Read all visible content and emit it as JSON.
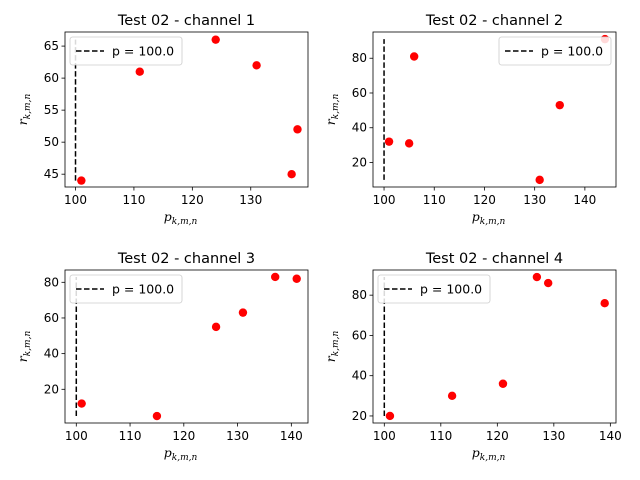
{
  "figure": {
    "background": "#ffffff",
    "marker_color": "#ff0000",
    "line_color": "#000000"
  },
  "chart_data": [
    {
      "type": "scatter",
      "title": "Test 02 - channel 1",
      "xlabel": "p",
      "xlabel_sub": "k,m,n",
      "ylabel": "r",
      "ylabel_sub": "k,m,n",
      "xlim": [
        98.2,
        139.8
      ],
      "ylim": [
        43.0,
        67.2
      ],
      "xticks": [
        100,
        110,
        120,
        130
      ],
      "yticks": [
        45,
        50,
        55,
        60,
        65
      ],
      "legend": {
        "label": "p = 100.0",
        "placement": "upper-left"
      },
      "vline": {
        "x": 100,
        "y": [
          44,
          66
        ],
        "style": "dashed"
      },
      "points": {
        "x": [
          101,
          111,
          124,
          131,
          137,
          138
        ],
        "y": [
          44,
          61,
          66,
          62,
          45,
          52
        ]
      }
    },
    {
      "type": "scatter",
      "title": "Test 02 - channel 2",
      "xlabel": "p",
      "xlabel_sub": "k,m,n",
      "ylabel": "r",
      "ylabel_sub": "k,m,n",
      "xlim": [
        97.8,
        146.2
      ],
      "ylim": [
        5.9,
        95.1
      ],
      "xticks": [
        100,
        110,
        120,
        130,
        140
      ],
      "yticks": [
        20,
        40,
        60,
        80
      ],
      "legend": {
        "label": "p = 100.0",
        "placement": "upper-right"
      },
      "vline": {
        "x": 100,
        "y": [
          10,
          91
        ],
        "style": "dashed"
      },
      "points": {
        "x": [
          101,
          105,
          106,
          131,
          135,
          144
        ],
        "y": [
          32,
          31,
          81,
          10,
          53,
          91
        ]
      }
    },
    {
      "type": "scatter",
      "title": "Test 02 - channel 3",
      "xlabel": "p",
      "xlabel_sub": "k,m,n",
      "ylabel": "r",
      "ylabel_sub": "k,m,n",
      "xlim": [
        97.9,
        143.1
      ],
      "ylim": [
        1.1,
        86.9
      ],
      "xticks": [
        100,
        110,
        120,
        130,
        140
      ],
      "yticks": [
        20,
        40,
        60,
        80
      ],
      "legend": {
        "label": "p = 100.0",
        "placement": "upper-left"
      },
      "vline": {
        "x": 100,
        "y": [
          5,
          83
        ],
        "style": "dashed"
      },
      "points": {
        "x": [
          101,
          115,
          126,
          131,
          137,
          141
        ],
        "y": [
          12,
          5,
          55,
          63,
          83,
          82
        ]
      }
    },
    {
      "type": "scatter",
      "title": "Test 02 - channel 4",
      "xlabel": "p",
      "xlabel_sub": "k,m,n",
      "ylabel": "r",
      "ylabel_sub": "k,m,n",
      "xlim": [
        98.0,
        141.0
      ],
      "ylim": [
        16.5,
        92.5
      ],
      "xticks": [
        100,
        110,
        120,
        130,
        140
      ],
      "yticks": [
        20,
        40,
        60,
        80
      ],
      "legend": {
        "label": "p = 100.0",
        "placement": "upper-left"
      },
      "vline": {
        "x": 100,
        "y": [
          20,
          89
        ],
        "style": "dashed"
      },
      "points": {
        "x": [
          101,
          112,
          121,
          127,
          129,
          139
        ],
        "y": [
          20,
          30,
          36,
          89,
          86,
          76
        ]
      }
    }
  ]
}
